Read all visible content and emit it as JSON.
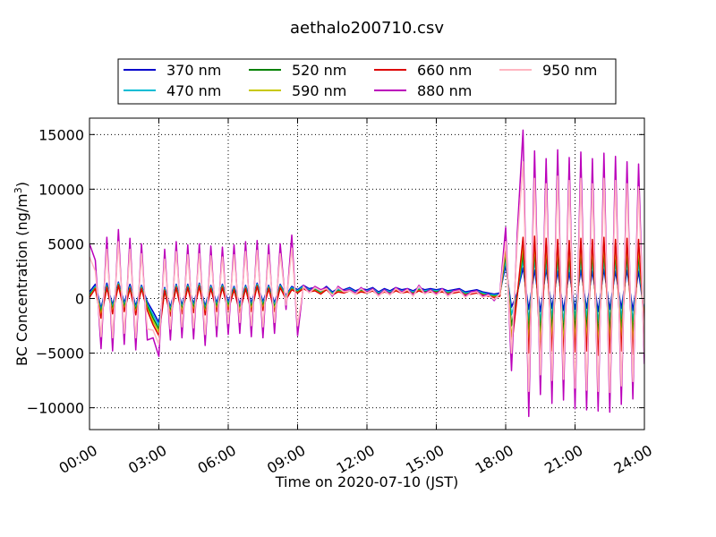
{
  "chart_data": {
    "type": "line",
    "title": "aethalo200710.csv",
    "xlabel": "Time on 2020-07-10 (JST)",
    "ylabel_main": "BC Concentration (ng/m",
    "ylabel_sup": "3",
    "ylabel_tail": ")",
    "xlim_hours": [
      0,
      24
    ],
    "ylim": [
      -12000,
      16500
    ],
    "x_ticks": [
      {
        "hour": 0,
        "label": "00:00"
      },
      {
        "hour": 3,
        "label": "03:00"
      },
      {
        "hour": 6,
        "label": "06:00"
      },
      {
        "hour": 9,
        "label": "09:00"
      },
      {
        "hour": 12,
        "label": "12:00"
      },
      {
        "hour": 15,
        "label": "15:00"
      },
      {
        "hour": 18,
        "label": "18:00"
      },
      {
        "hour": 21,
        "label": "21:00"
      },
      {
        "hour": 24,
        "label": "24:00"
      }
    ],
    "y_ticks": [
      {
        "value": -10000,
        "label": "−10000"
      },
      {
        "value": -5000,
        "label": "−5000"
      },
      {
        "value": 0,
        "label": "0"
      },
      {
        "value": 5000,
        "label": "5000"
      },
      {
        "value": 10000,
        "label": "10000"
      },
      {
        "value": 15000,
        "label": "15000"
      }
    ],
    "grid": true,
    "legend_position": "top-center",
    "time_hours": [
      0,
      0.25,
      0.5,
      0.75,
      1,
      1.25,
      1.5,
      1.75,
      2,
      2.25,
      2.5,
      2.75,
      3,
      3.25,
      3.5,
      3.75,
      4,
      4.25,
      4.5,
      4.75,
      5,
      5.25,
      5.5,
      5.75,
      6,
      6.25,
      6.5,
      6.75,
      7,
      7.25,
      7.5,
      7.75,
      8,
      8.25,
      8.5,
      8.75,
      9,
      9.25,
      9.5,
      9.75,
      10,
      10.25,
      10.5,
      10.75,
      11,
      11.25,
      11.5,
      11.75,
      12,
      12.25,
      12.5,
      12.75,
      13,
      13.25,
      13.5,
      13.75,
      14,
      14.25,
      14.5,
      14.75,
      15,
      15.25,
      15.5,
      15.75,
      16,
      16.25,
      16.5,
      16.75,
      17,
      17.25,
      17.5,
      17.75,
      18,
      18.25,
      18.5,
      18.75,
      19,
      19.25,
      19.5,
      19.75,
      20,
      20.25,
      20.5,
      20.75,
      21,
      21.25,
      21.5,
      21.75,
      22,
      22.25,
      22.5,
      22.75,
      23,
      23.25,
      23.5,
      23.75,
      24
    ],
    "series": [
      {
        "name": "370 nm",
        "color": "#0000cc",
        "values": [
          600,
          1300,
          -900,
          1400,
          -600,
          1500,
          -400,
          1300,
          -700,
          1200,
          -300,
          -1200,
          -2200,
          1000,
          -800,
          1300,
          -600,
          1300,
          -500,
          1400,
          -700,
          1200,
          -400,
          1300,
          -300,
          1100,
          -500,
          1200,
          -400,
          1400,
          -300,
          1200,
          -400,
          1300,
          300,
          1100,
          800,
          1200,
          900,
          1000,
          700,
          1100,
          600,
          900,
          800,
          1000,
          700,
          900,
          800,
          1000,
          600,
          900,
          700,
          1000,
          800,
          900,
          700,
          1000,
          800,
          900,
          800,
          900,
          700,
          800,
          900,
          600,
          700,
          800,
          600,
          500,
          400,
          500,
          3000,
          -800,
          500,
          2800,
          -1000,
          2600,
          -1200,
          2700,
          -900,
          2500,
          -1100,
          2400,
          -1000,
          2600,
          -900,
          2500,
          -1200,
          2700,
          -1000,
          2500,
          -900,
          2600,
          -1100,
          2500,
          -1500
        ]
      },
      {
        "name": "470 nm",
        "color": "#00bcd4",
        "values": [
          400,
          1100,
          -1100,
          1200,
          -800,
          1400,
          -600,
          1100,
          -900,
          1100,
          -500,
          -1500,
          -2500,
          900,
          -1000,
          1200,
          -800,
          1200,
          -700,
          1300,
          -900,
          1100,
          -600,
          1200,
          -500,
          1000,
          -700,
          1100,
          -600,
          1300,
          -500,
          1100,
          -600,
          1200,
          200,
          1000,
          700,
          1100,
          800,
          900,
          600,
          1000,
          500,
          800,
          700,
          900,
          600,
          800,
          700,
          900,
          500,
          800,
          600,
          900,
          700,
          800,
          600,
          900,
          700,
          800,
          700,
          800,
          600,
          700,
          800,
          500,
          600,
          700,
          500,
          400,
          300,
          400,
          3500,
          -1500,
          400,
          3500,
          -2000,
          3500,
          -2200,
          3400,
          -1800,
          3300,
          -2100,
          3200,
          -1900,
          3400,
          -1800,
          3300,
          -2200,
          3500,
          -2000,
          3300,
          -1800,
          3400,
          -2100,
          3300,
          -1800
        ]
      },
      {
        "name": "520 nm",
        "color": "#008000",
        "values": [
          300,
          1000,
          -1300,
          1100,
          -1000,
          1300,
          -800,
          1000,
          -1100,
          1000,
          -700,
          -1800,
          -2800,
          800,
          -1200,
          1100,
          -1000,
          1100,
          -900,
          1200,
          -1100,
          1000,
          -800,
          1100,
          -700,
          900,
          -900,
          1000,
          -800,
          1200,
          -700,
          1000,
          -800,
          1100,
          100,
          900,
          600,
          1000,
          700,
          800,
          500,
          900,
          400,
          700,
          600,
          800,
          500,
          700,
          600,
          800,
          400,
          700,
          500,
          800,
          600,
          700,
          500,
          800,
          600,
          700,
          600,
          700,
          500,
          600,
          700,
          400,
          500,
          600,
          400,
          300,
          200,
          300,
          4000,
          -2500,
          300,
          4200,
          -3000,
          4300,
          -3200,
          4100,
          -2800,
          4000,
          -3100,
          3900,
          -2900,
          4100,
          -2800,
          4000,
          -3200,
          4200,
          -3000,
          4000,
          -2800,
          4100,
          -3100,
          4000,
          -2200
        ]
      },
      {
        "name": "590 nm",
        "color": "#c8c800",
        "values": [
          200,
          950,
          -1500,
          1050,
          -1200,
          1250,
          -1000,
          950,
          -1300,
          950,
          -900,
          -2100,
          -3100,
          750,
          -1400,
          1050,
          -1200,
          1050,
          -1100,
          1150,
          -1300,
          950,
          -1000,
          1050,
          -900,
          850,
          -1100,
          950,
          -1000,
          1150,
          -900,
          950,
          -1000,
          1050,
          0,
          850,
          550,
          950,
          650,
          750,
          450,
          850,
          350,
          650,
          550,
          750,
          450,
          650,
          550,
          750,
          350,
          650,
          450,
          750,
          550,
          650,
          450,
          750,
          550,
          650,
          550,
          650,
          450,
          550,
          650,
          350,
          450,
          550,
          350,
          250,
          150,
          250,
          4500,
          -3500,
          250,
          4900,
          -4000,
          5000,
          -4200,
          4800,
          -3800,
          4700,
          -4100,
          4600,
          -3900,
          4800,
          -3800,
          4700,
          -4200,
          4900,
          -4000,
          4700,
          -3800,
          4800,
          -4100,
          4700,
          -2500
        ]
      },
      {
        "name": "660 nm",
        "color": "#dd0000",
        "values": [
          100,
          900,
          -1800,
          1000,
          -1400,
          1200,
          -1200,
          900,
          -1500,
          900,
          -1100,
          -2400,
          -3400,
          700,
          -1600,
          1000,
          -1400,
          1000,
          -1300,
          1100,
          -1500,
          900,
          -1200,
          1000,
          -1100,
          800,
          -1300,
          900,
          -1200,
          1100,
          -1100,
          900,
          -1200,
          1000,
          -100,
          800,
          500,
          900,
          600,
          700,
          400,
          800,
          300,
          600,
          500,
          700,
          400,
          600,
          500,
          700,
          300,
          600,
          400,
          700,
          500,
          600,
          400,
          700,
          500,
          600,
          500,
          600,
          400,
          500,
          600,
          300,
          400,
          500,
          300,
          200,
          100,
          200,
          5000,
          -4500,
          200,
          5600,
          -5000,
          5700,
          -5200,
          5500,
          -4800,
          5400,
          -5100,
          5300,
          -4900,
          5500,
          -4800,
          5400,
          -5200,
          5600,
          -5000,
          5400,
          -4800,
          5500,
          -5100,
          5400,
          -2800
        ]
      },
      {
        "name": "880 nm",
        "color": "#bb00bb",
        "values": [
          5000,
          3500,
          -4600,
          5600,
          -4800,
          6300,
          -4200,
          5500,
          -4700,
          5000,
          -3800,
          -3600,
          -5300,
          4500,
          -3800,
          5200,
          -3600,
          4900,
          -3700,
          5000,
          -4300,
          4800,
          -3500,
          4700,
          -3300,
          4900,
          -3200,
          5200,
          -3500,
          5300,
          -3600,
          4900,
          -3200,
          5000,
          -1000,
          5800,
          -3400,
          1200,
          600,
          1100,
          800,
          1000,
          200,
          1100,
          700,
          800,
          500,
          1000,
          600,
          900,
          300,
          800,
          400,
          1000,
          600,
          900,
          300,
          1200,
          500,
          800,
          400,
          900,
          300,
          700,
          800,
          200,
          600,
          700,
          200,
          400,
          -200,
          500,
          6500,
          -6600,
          5900,
          15400,
          -10800,
          13500,
          -8800,
          12800,
          -9600,
          13600,
          -9300,
          12900,
          -10100,
          13400,
          -10200,
          12800,
          -10300,
          13300,
          -10400,
          13000,
          -9700,
          12500,
          -9200,
          12300,
          -6000
        ]
      },
      {
        "name": "950 nm",
        "color": "#ffb6c1",
        "values": [
          3800,
          2500,
          -3500,
          4500,
          -3600,
          5200,
          -3200,
          4500,
          -3600,
          4100,
          -2800,
          -2900,
          -4200,
          3600,
          -2800,
          4300,
          -2600,
          4000,
          -2700,
          4100,
          -3300,
          3900,
          -2500,
          3800,
          -2300,
          4000,
          -2200,
          4300,
          -2500,
          4400,
          -2600,
          4000,
          -2200,
          4100,
          -600,
          4600,
          -2500,
          1100,
          500,
          1000,
          700,
          900,
          300,
          1000,
          600,
          700,
          400,
          900,
          500,
          800,
          200,
          700,
          300,
          900,
          500,
          800,
          200,
          1100,
          400,
          700,
          300,
          800,
          200,
          600,
          700,
          100,
          500,
          600,
          100,
          300,
          -100,
          400,
          5200,
          -5000,
          5000,
          12500,
          -8500,
          11000,
          -7000,
          10500,
          -7500,
          11200,
          -7400,
          10800,
          -8200,
          11000,
          -8400,
          10500,
          -8500,
          11000,
          -8600,
          10800,
          -8000,
          10500,
          -7600,
          10200,
          -5000
        ]
      }
    ]
  }
}
